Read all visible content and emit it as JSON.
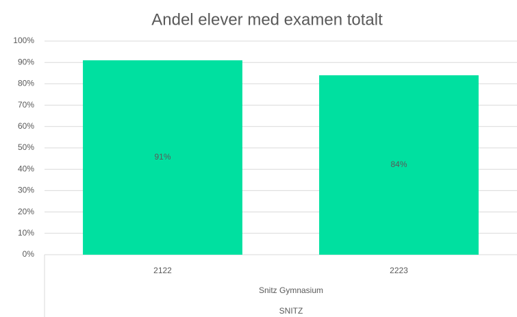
{
  "chart_data": {
    "type": "bar",
    "title": "Andel elever med examen totalt",
    "categories": [
      "2122",
      "2223"
    ],
    "values": [
      91,
      84
    ],
    "value_labels": [
      "91%",
      "84%"
    ],
    "group_labels": [
      "Snitz Gymnasium",
      "SNITZ"
    ],
    "color": "#00e0a0",
    "ylim": [
      0,
      100
    ],
    "yticks": [
      {
        "value": 0,
        "label": "0%"
      },
      {
        "value": 10,
        "label": "10%"
      },
      {
        "value": 20,
        "label": "20%"
      },
      {
        "value": 30,
        "label": "30%"
      },
      {
        "value": 40,
        "label": "40%"
      },
      {
        "value": 50,
        "label": "50%"
      },
      {
        "value": 60,
        "label": "60%"
      },
      {
        "value": 70,
        "label": "70%"
      },
      {
        "value": 80,
        "label": "80%"
      },
      {
        "value": 90,
        "label": "90%"
      },
      {
        "value": 100,
        "label": "100%"
      }
    ],
    "grid": true
  }
}
